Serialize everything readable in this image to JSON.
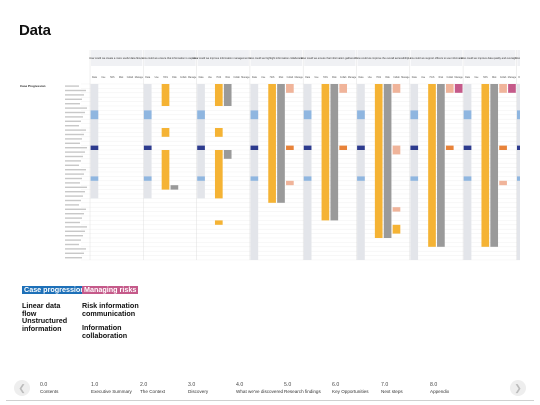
{
  "page": {
    "title": "Data"
  },
  "matrix": {
    "row_group_label": "Case Progression",
    "column_groups": [
      "How could we create a more useful data flow, to ensure that relevant information is shared between systems and agencies?",
      "How could we ensure that information is captured in a structured way?",
      "How could we improve information management so that risk information is communicated in a consistent way?",
      "How could we highlight information collaboration points?",
      "How could we ensure that information gathered by key partners is integrated into the case management system?",
      "How could we improve the overall accessibility and use of intelligence?",
      "How could we support officers to use information collected across multiple stages?",
      "How could we improve data quality and oversight?",
      "How could we better identify and manage risks throughout the process?"
    ],
    "sub_columns": [
      "Data",
      "Use",
      "HAS",
      "Risk",
      "Collab",
      "Manage"
    ],
    "row_count": 40
  },
  "legend": {
    "case_progression": "Case progression",
    "managing_risks": "Managing risks",
    "linear_data_flow": "Linear data flow",
    "risk_info_comm": "Risk information communication",
    "unstructured_info": "Unstructured information",
    "info_collab": "Information collaboration"
  },
  "nav": {
    "items": [
      {
        "num": "0.0",
        "label": "Contents"
      },
      {
        "num": "1.0",
        "label": "Executive Summary"
      },
      {
        "num": "2.0",
        "label": "The Context"
      },
      {
        "num": "3.0",
        "label": "Discovery"
      },
      {
        "num": "4.0",
        "label": "What we've discovered"
      },
      {
        "num": "5.0",
        "label": "Research findings"
      },
      {
        "num": "6.0",
        "label": "Key Opportunities"
      },
      {
        "num": "7.0",
        "label": "Next steps"
      },
      {
        "num": "8.0",
        "label": "Appendix"
      }
    ],
    "prev_icon": "chevron-left-icon",
    "next_icon": "chevron-right-icon"
  },
  "colors": {
    "case_progression": "#1d70b8",
    "managing_risks": "#c55a8a",
    "yellow": "#f5b334",
    "grey": "#9a9a9a",
    "pink": "#c55a8a",
    "peach": "#f0b49a",
    "navy": "#2d3b8e",
    "light_blue": "#8fb6e0",
    "orange": "#e8833a",
    "shade": "#e3e5ea"
  }
}
